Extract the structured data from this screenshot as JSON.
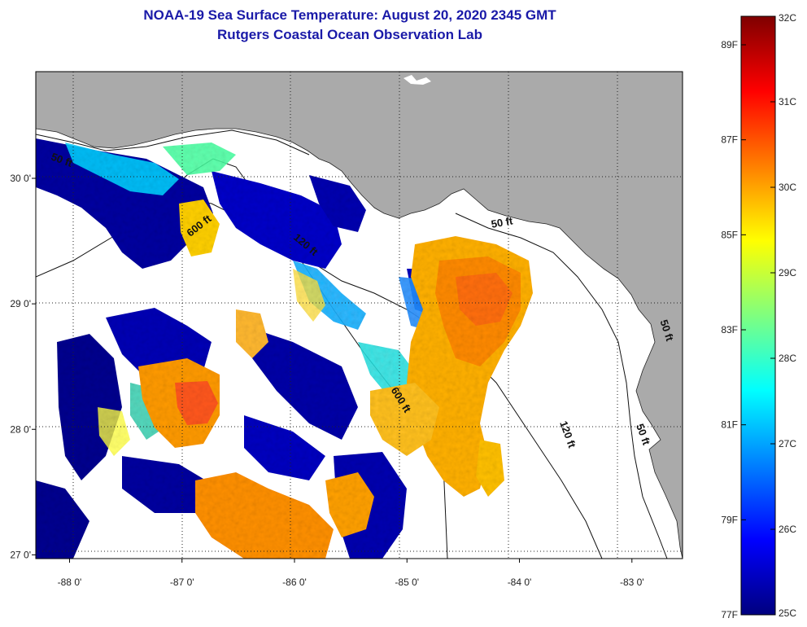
{
  "title_line1": "NOAA-19 Sea Surface Temperature:  August 20, 2020 2345 GMT",
  "title_line2": "Rutgers Coastal Ocean Observation Lab",
  "map": {
    "lon_range": [
      -88.3,
      -82.55
    ],
    "lat_range": [
      26.97,
      30.85
    ],
    "lon_ticks": [
      {
        "value": -88,
        "label": "-88 0'"
      },
      {
        "value": -87,
        "label": "-87 0'"
      },
      {
        "value": -86,
        "label": "-86 0'"
      },
      {
        "value": -85,
        "label": "-85 0'"
      },
      {
        "value": -84,
        "label": "-84 0'"
      },
      {
        "value": -83,
        "label": "-83 0'"
      }
    ],
    "lat_ticks": [
      {
        "value": 30,
        "label": "30 0'"
      },
      {
        "value": 29,
        "label": "29 0'"
      },
      {
        "value": 28,
        "label": "28 0'"
      },
      {
        "value": 27,
        "label": "27 0'"
      }
    ],
    "grid": "dotted",
    "land_color": "#aaaaaa",
    "ocean_nodata_color": "#ffffff",
    "contour_labels": [
      {
        "text": "50 ft",
        "lon": -88.08,
        "lat": 30.12,
        "angle": 20
      },
      {
        "text": "600 ft",
        "lon": -86.83,
        "lat": 29.6,
        "angle": -38
      },
      {
        "text": "120 ft",
        "lon": -85.92,
        "lat": 29.45,
        "angle": 40
      },
      {
        "text": "600 ft",
        "lon": -85.08,
        "lat": 28.22,
        "angle": 58
      },
      {
        "text": "50 ft",
        "lon": -84.15,
        "lat": 29.62,
        "angle": -10
      },
      {
        "text": "120 ft",
        "lon": -83.6,
        "lat": 27.95,
        "angle": 70
      },
      {
        "text": "50 ft",
        "lon": -82.93,
        "lat": 27.95,
        "angle": 70
      },
      {
        "text": "50 ft",
        "lon": -82.72,
        "lat": 28.78,
        "angle": 72
      }
    ]
  },
  "colorbar": {
    "min_c": 25,
    "max_c": 32,
    "celsius_ticks": [
      {
        "value": 32,
        "label": "32C"
      },
      {
        "value": 31,
        "label": "31C"
      },
      {
        "value": 30,
        "label": "30C"
      },
      {
        "value": 29,
        "label": "29C"
      },
      {
        "value": 28,
        "label": "28C"
      },
      {
        "value": 27,
        "label": "27C"
      },
      {
        "value": 26,
        "label": "26C"
      },
      {
        "value": 25,
        "label": "25C"
      }
    ],
    "fahrenheit_ticks": [
      {
        "value": 89,
        "label": "89F"
      },
      {
        "value": 87,
        "label": "87F"
      },
      {
        "value": 85,
        "label": "85F"
      },
      {
        "value": 83,
        "label": "83F"
      },
      {
        "value": 81,
        "label": "81F"
      },
      {
        "value": 79,
        "label": "79F"
      },
      {
        "value": 77,
        "label": "77F"
      }
    ],
    "colors": [
      "#00007f",
      "#0000ff",
      "#007fff",
      "#00ffff",
      "#7fff7f",
      "#ffff00",
      "#ff7f00",
      "#ff0000",
      "#7f0000"
    ]
  }
}
